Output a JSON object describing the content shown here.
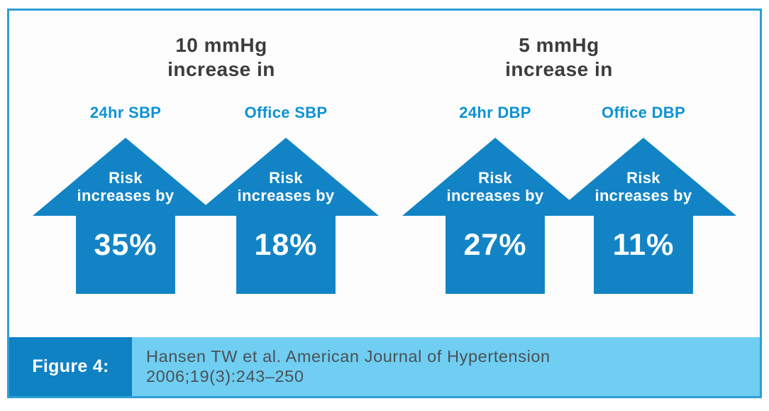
{
  "figure": {
    "groups": [
      {
        "header_line1": "10 mmHg",
        "header_line2": "increase in",
        "columns": [
          {
            "label": "24hr SBP",
            "risk_line1": "Risk",
            "risk_line2": "increases by",
            "value": "35%"
          },
          {
            "label": "Office SBP",
            "risk_line1": "Risk",
            "risk_line2": "increases by",
            "value": "18%"
          }
        ]
      },
      {
        "header_line1": "5 mmHg",
        "header_line2": "increase in",
        "columns": [
          {
            "label": "24hr DBP",
            "risk_line1": "Risk",
            "risk_line2": "increases by",
            "value": "27%"
          },
          {
            "label": "Office DBP",
            "risk_line1": "Risk",
            "risk_line2": "increases by",
            "value": "11%"
          }
        ]
      }
    ],
    "caption": {
      "label": "Figure 4:",
      "line1": "Hansen TW et al. American Journal of Hypertension",
      "line2": "2006;19(3):243–250"
    }
  },
  "colors": {
    "arrow_blue": "#1284c6",
    "label_blue": "#0e92d5",
    "border_blue": "#2d9fd6",
    "caption_dark_blue": "#0e82c3",
    "caption_light_blue": "#6fcef2",
    "header_text": "#3b3c3e",
    "citation_text": "#4b5055"
  },
  "chart_data": {
    "type": "bar",
    "unit": "percent",
    "title": "Risk increase associated with blood pressure increments",
    "groups": [
      {
        "header": "10 mmHg increase in",
        "categories": [
          "24hr SBP",
          "Office SBP"
        ],
        "values": [
          35,
          18
        ]
      },
      {
        "header": "5 mmHg increase in",
        "categories": [
          "24hr DBP",
          "Office DBP"
        ],
        "values": [
          27,
          11
        ]
      }
    ],
    "categories": [
      "24hr SBP",
      "Office SBP",
      "24hr DBP",
      "Office DBP"
    ],
    "values": [
      35,
      18,
      27,
      11
    ],
    "annotation": "Risk increases by",
    "caption": "Figure 4: Hansen TW et al. American Journal of Hypertension 2006;19(3):243–250"
  }
}
